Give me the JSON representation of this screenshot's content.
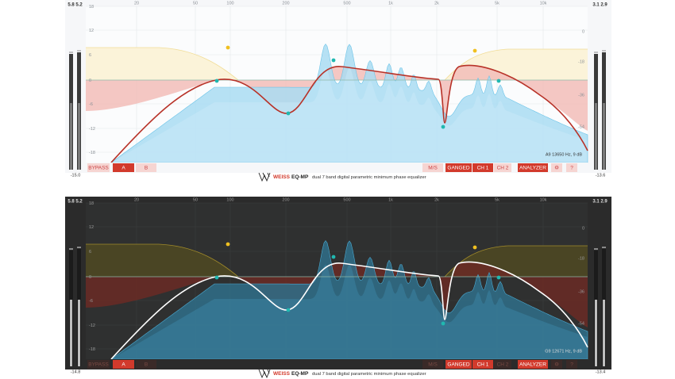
{
  "panels": [
    {
      "theme": "light",
      "meter_peaks_left": [
        "5.8",
        "5.2"
      ],
      "meter_peaks_right": [
        "3.1",
        "2.9"
      ],
      "freq_labels": [
        "20",
        "50",
        "100",
        "200",
        "500",
        "1k",
        "2k",
        "5k",
        "10k"
      ],
      "db_labels": [
        "18",
        "12",
        "6",
        "0",
        "-6",
        "-12",
        "-18"
      ],
      "right_labels": [
        "0",
        "-18",
        "-36",
        "-54"
      ],
      "meter_readings": [
        "-15.0",
        "-13.6"
      ],
      "info": "A9 13650 Hz, 9 dB",
      "buttons": [
        {
          "label": "BYPASS",
          "active": false
        },
        {
          "label": "A",
          "active": true
        },
        {
          "label": "B",
          "active": false
        },
        {
          "label": "M/S",
          "active": false
        },
        {
          "label": "GANGED",
          "active": true
        },
        {
          "label": "CH 1",
          "active": true
        },
        {
          "label": "CH 2",
          "active": false
        },
        {
          "label": "ANALYZER",
          "active": true
        },
        {
          "label": "⚙",
          "active": false
        },
        {
          "label": "?",
          "active": false
        }
      ],
      "brand": "WEISS",
      "product": "EQ-MP",
      "tagline": "dual 7 band digital parametric minimum phase equalizer"
    },
    {
      "theme": "dark",
      "meter_peaks_left": [
        "5.8",
        "5.2"
      ],
      "meter_peaks_right": [
        "3.1",
        "2.9"
      ],
      "freq_labels": [
        "20",
        "50",
        "100",
        "200",
        "500",
        "1k",
        "2k",
        "5k",
        "10k"
      ],
      "db_labels": [
        "18",
        "12",
        "6",
        "0",
        "-6",
        "-12",
        "-18"
      ],
      "right_labels": [
        "0",
        "-18",
        "-36",
        "-54"
      ],
      "meter_readings": [
        "-14.8",
        "-13.4"
      ],
      "info": "G9 12671 Hz, 9 dB",
      "buttons": [
        {
          "label": "BYPASS",
          "active": false
        },
        {
          "label": "A",
          "active": true
        },
        {
          "label": "B",
          "active": false
        },
        {
          "label": "M/S",
          "active": false
        },
        {
          "label": "GANGED",
          "active": true
        },
        {
          "label": "CH 1",
          "active": true
        },
        {
          "label": "CH 2",
          "active": false
        },
        {
          "label": "ANALYZER",
          "active": true
        },
        {
          "label": "⚙",
          "active": false
        },
        {
          "label": "?",
          "active": false
        }
      ],
      "brand": "WEISS",
      "product": "EQ-MP",
      "tagline": "dual 7 band digital parametric minimum phase equalizer"
    }
  ]
}
